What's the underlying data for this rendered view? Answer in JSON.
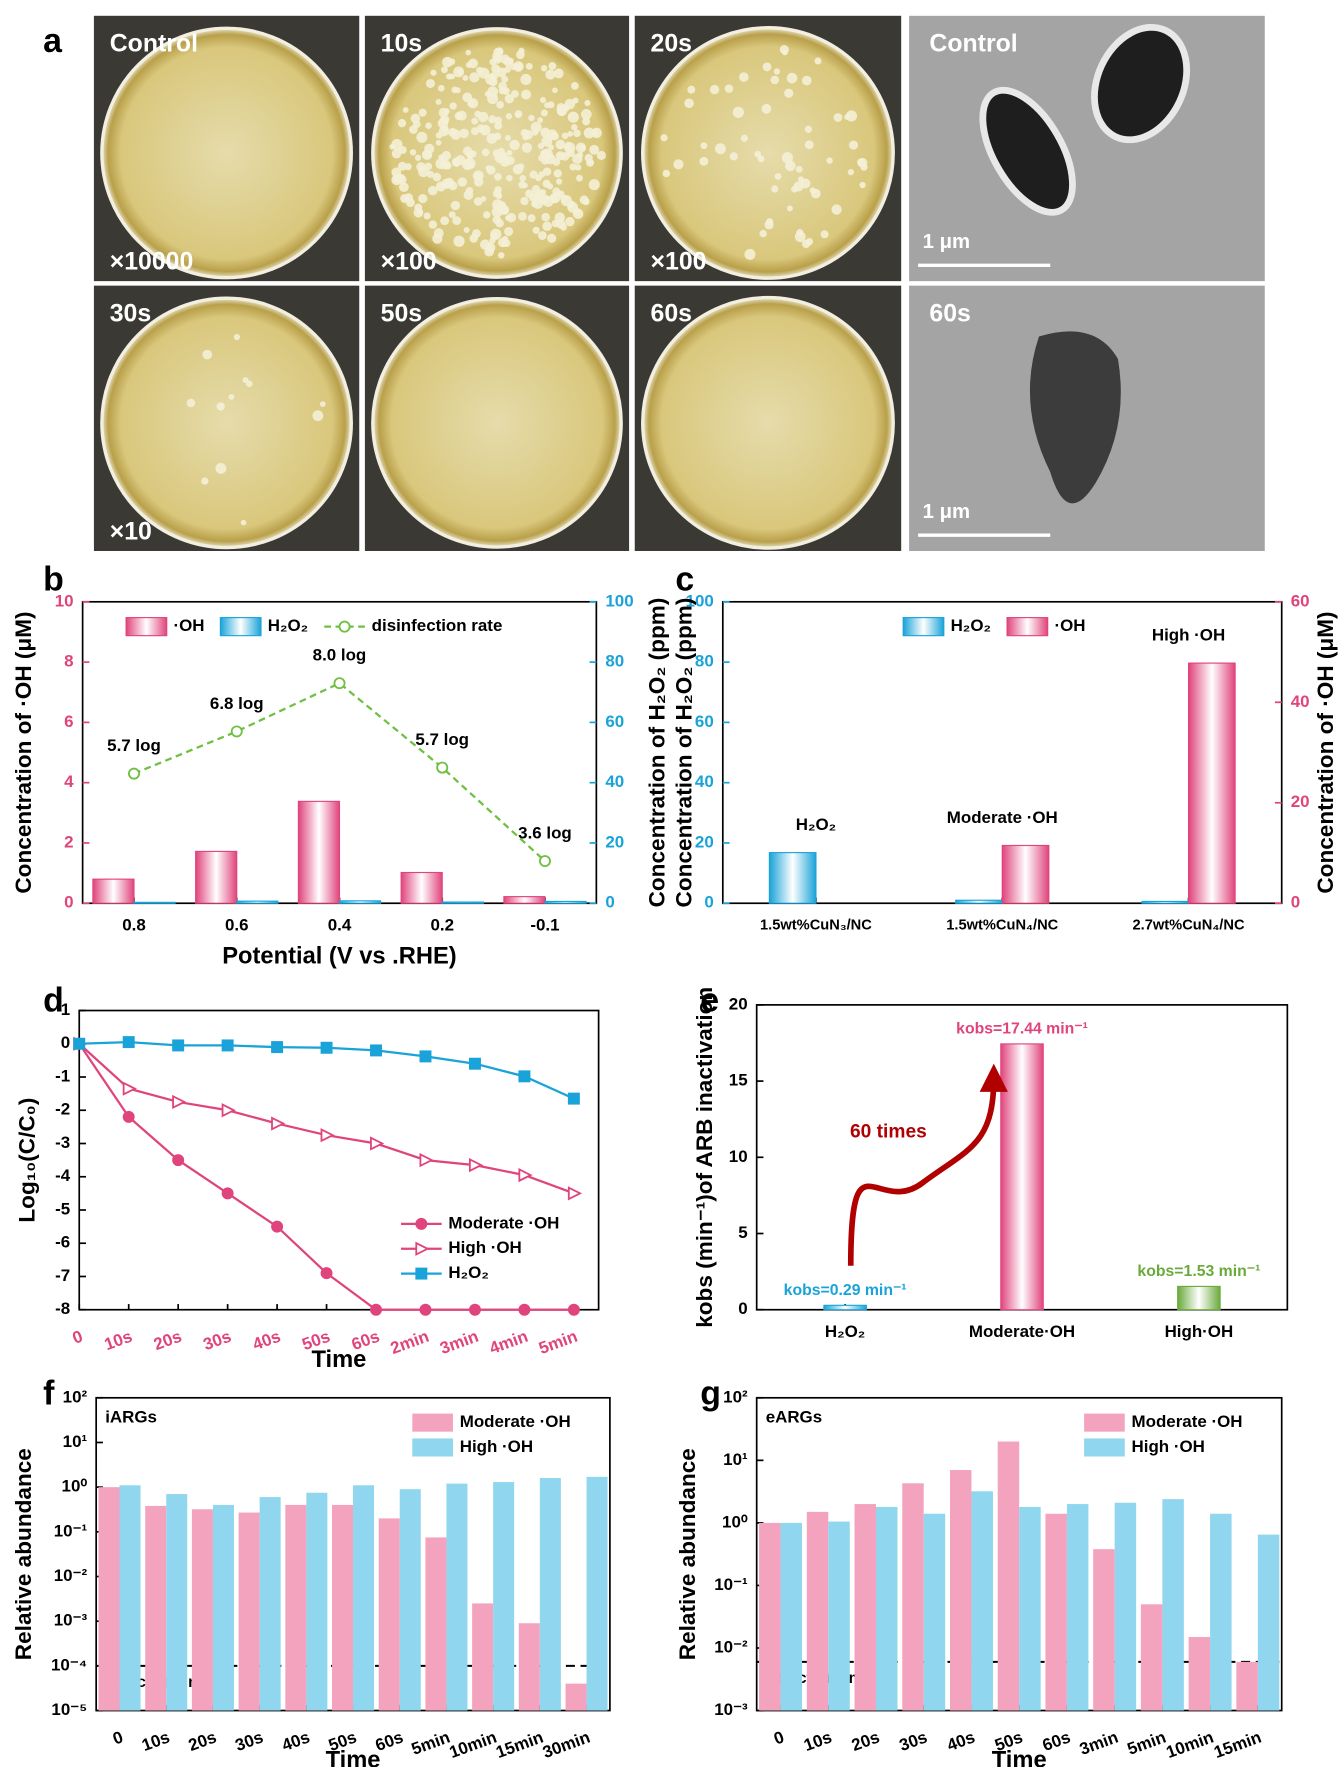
{
  "panel_a": {
    "label": "a",
    "plates": [
      {
        "time": "Control",
        "dilution": "×10000"
      },
      {
        "time": "10s",
        "dilution": "×100"
      },
      {
        "time": "20s",
        "dilution": "×100"
      },
      {
        "time": "30s",
        "dilution": "×10"
      },
      {
        "time": "50s"
      },
      {
        "time": "60s"
      }
    ],
    "tem": [
      {
        "time": "Control",
        "scale_bar": "1 μm"
      },
      {
        "time": "60s",
        "scale_bar": "1 μm"
      }
    ]
  },
  "chart_data": [
    {
      "type": "bar",
      "panel_label": "b",
      "gradient": true,
      "categories": [
        "0.8",
        "0.6",
        "0.4",
        "0.2",
        "-0.1"
      ],
      "series": [
        {
          "name": "·OH",
          "color": "#e0447c",
          "values": [
            0.8,
            1.72,
            3.38,
            1.02,
            0.22
          ]
        },
        {
          "name": "H₂O₂",
          "color": "#1aa3d8",
          "axis": "y2",
          "values": [
            0.3,
            0.7,
            0.8,
            0.4,
            0.6
          ]
        },
        {
          "name": "disinfection rate",
          "color": "#6fbf40",
          "type": "line",
          "axis": "y2",
          "marker": "circle-open",
          "linestyle": "dashed",
          "values": [
            43,
            57,
            73,
            45,
            14
          ]
        }
      ],
      "annotations": [
        "5.7 log",
        "6.8 log",
        "8.0 log",
        "5.7 log",
        "3.6 log"
      ],
      "xlabel": "Potential (V vs .RHE)",
      "ylabel": "Concentration of ·OH (μM)",
      "y2label": "Concentration of H₂O₂ (ppm)",
      "ylim": [
        0,
        10
      ],
      "yticks": [
        0,
        2,
        4,
        6,
        8,
        10
      ],
      "ytick_color": "#e0447c",
      "y2lim": [
        0,
        100
      ],
      "y2ticks": [
        0,
        20,
        40,
        60,
        80,
        100
      ],
      "y2tick_color": "#1aa3d8",
      "legend": "upper center"
    },
    {
      "type": "bar",
      "panel_label": "c",
      "gradient": true,
      "categories": [
        "1.5wt%CuN₃/NC",
        "1.5wt%CuN₄/NC",
        "2.7wt%CuN₄/NC"
      ],
      "series": [
        {
          "name": "H₂O₂",
          "color": "#1aa3d8",
          "values": [
            16.8,
            1.0,
            0.6
          ]
        },
        {
          "name": "·OH",
          "color": "#e0447c",
          "axis": "y2",
          "values": [
            null,
            11.5,
            47.8
          ]
        }
      ],
      "annotations": [
        "H₂O₂",
        "Moderate ·OH",
        "High ·OH"
      ],
      "ylabel": "Concentration of H₂O₂ (ppm)",
      "y2label": "Concentration of ·OH (μM)",
      "ylim": [
        0,
        100
      ],
      "yticks": [
        0,
        20,
        40,
        60,
        80,
        100
      ],
      "ytick_color": "#1aa3d8",
      "y2lim": [
        0,
        60
      ],
      "y2ticks": [
        0,
        20,
        40,
        60
      ],
      "y2tick_color": "#e0447c",
      "legend": "upper center"
    },
    {
      "type": "line",
      "panel_label": "d",
      "categories": [
        "0",
        "10s",
        "20s",
        "30s",
        "40s",
        "50s",
        "60s",
        "2min",
        "3min",
        "4min",
        "5min"
      ],
      "series": [
        {
          "name": "Moderate ·OH",
          "color": "#e0447c",
          "marker": "circle",
          "values": [
            0,
            -2.2,
            -3.5,
            -4.5,
            -5.5,
            -6.9,
            -8,
            -8,
            -8,
            -8,
            -8
          ]
        },
        {
          "name": "High ·OH",
          "color": "#e0447c",
          "marker": "triangle-open",
          "values": [
            0,
            -1.35,
            -1.75,
            -2.0,
            -2.4,
            -2.75,
            -3.0,
            -3.5,
            -3.65,
            -3.95,
            -4.5
          ]
        },
        {
          "name": "H₂O₂",
          "color": "#1aa3d8",
          "marker": "square",
          "values": [
            0,
            0.05,
            -0.05,
            -0.05,
            -0.1,
            -0.12,
            -0.2,
            -0.38,
            -0.6,
            -0.98,
            -1.65
          ]
        }
      ],
      "xlabel": "Time",
      "ylabel": "Log₁₀(C/C₀)",
      "xtick_color": "#e0447c",
      "ylim": [
        -8,
        1
      ],
      "yticks": [
        -8,
        -7,
        -6,
        -5,
        -4,
        -3,
        -2,
        -1,
        0,
        1
      ],
      "legend": "lower right"
    },
    {
      "type": "bar",
      "panel_label": "e",
      "gradient": true,
      "categories": [
        "H₂O₂",
        "Moderate·OH",
        "High·OH"
      ],
      "series": [
        {
          "colors": [
            "#1aa3d8",
            "#e0447c",
            "#6aaa3c"
          ],
          "values": [
            0.29,
            17.44,
            1.53
          ],
          "value_labels": [
            "kobs=0.29 min⁻¹",
            "kobs=17.44 min⁻¹",
            "kobs=1.53 min⁻¹"
          ]
        }
      ],
      "arrow_label": "60 times",
      "ylabel": "kobs (min⁻¹)of ARB inactivation",
      "ylim": [
        0,
        20
      ],
      "yticks": [
        0,
        5,
        10,
        15,
        20
      ]
    },
    {
      "type": "bar",
      "panel_label": "f",
      "title": "iARGs",
      "ylog": true,
      "categories": [
        "0",
        "10s",
        "20s",
        "30s",
        "40s",
        "50s",
        "60s",
        "5min",
        "10min",
        "15min",
        "30min"
      ],
      "series": [
        {
          "name": "Moderate ·OH",
          "color": "#f4a3bf",
          "values": [
            1.0,
            0.38,
            0.32,
            0.27,
            0.4,
            0.4,
            0.2,
            0.075,
            0.0025,
            0.0009,
            4e-05
          ]
        },
        {
          "name": "High ·OH",
          "color": "#8fd6ee",
          "values": [
            1.1,
            0.7,
            0.4,
            0.6,
            0.75,
            1.1,
            0.9,
            1.2,
            1.3,
            1.6,
            1.7
          ]
        }
      ],
      "reference_line": {
        "value": 0.0001,
        "label": "Detection limit"
      },
      "xlabel": "Time",
      "ylabel": "Relative abundance",
      "ylim": [
        1e-05,
        100
      ],
      "yticks": [
        {
          "value": 1e-05,
          "label": "10⁻⁵"
        },
        {
          "value": 0.0001,
          "label": "10⁻⁴"
        },
        {
          "value": 0.001,
          "label": "10⁻³"
        },
        {
          "value": 0.01,
          "label": "10⁻²"
        },
        {
          "value": 0.1,
          "label": "10⁻¹"
        },
        {
          "value": 1,
          "label": "10⁰"
        },
        {
          "value": 10,
          "label": "10¹"
        },
        {
          "value": 100,
          "label": "10²"
        }
      ],
      "legend": "upper right"
    },
    {
      "type": "bar",
      "panel_label": "g",
      "title": "eARGs",
      "ylog": true,
      "categories": [
        "0",
        "10s",
        "20s",
        "30s",
        "40s",
        "50s",
        "60s",
        "3min",
        "5min",
        "10min",
        "15min"
      ],
      "series": [
        {
          "name": "Moderate ·OH",
          "color": "#f4a3bf",
          "values": [
            1.0,
            1.5,
            2.0,
            4.3,
            7,
            20,
            1.4,
            0.38,
            0.05,
            0.015,
            0.006
          ]
        },
        {
          "name": "High ·OH",
          "color": "#8fd6ee",
          "values": [
            1.0,
            1.05,
            1.8,
            1.4,
            3.2,
            1.8,
            2.0,
            2.1,
            2.4,
            1.4,
            0.65
          ]
        }
      ],
      "reference_line": {
        "value": 0.006,
        "label": "Detection limit"
      },
      "xlabel": "Time",
      "ylabel": "Relative abundance",
      "ylim": [
        0.001,
        100
      ],
      "yticks": [
        {
          "value": 0.001,
          "label": "10⁻³"
        },
        {
          "value": 0.01,
          "label": "10⁻²"
        },
        {
          "value": 0.1,
          "label": "10⁻¹"
        },
        {
          "value": 1,
          "label": "10⁰"
        },
        {
          "value": 10,
          "label": "10¹"
        },
        {
          "value": 100,
          "label": "10²"
        }
      ],
      "legend": "upper right"
    }
  ]
}
